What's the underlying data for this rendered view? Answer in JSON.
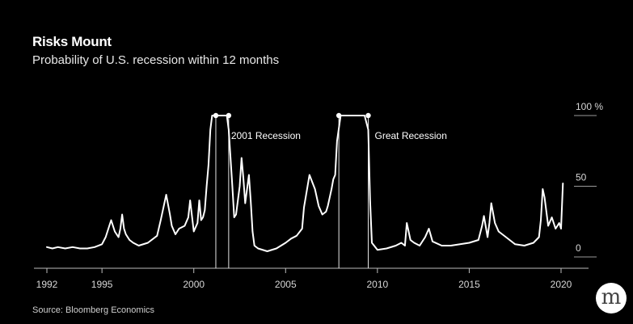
{
  "header": {
    "title": "Risks Mount",
    "subtitle": "Probability of U.S. recession within 12 months"
  },
  "footer": {
    "source": "Source: Bloomberg Economics"
  },
  "logo": {
    "letter": "m",
    "icon": "m-circle-logo"
  },
  "chart_data": {
    "type": "line",
    "title": "Risks Mount",
    "subtitle": "Probability of U.S. recession within 12 months",
    "xlabel": "",
    "ylabel": "",
    "xlim": [
      1992,
      2020.5
    ],
    "ylim": [
      0,
      100
    ],
    "x_ticks": [
      {
        "value": 1992,
        "label": "1992"
      },
      {
        "value": 1995,
        "label": "1995"
      },
      {
        "value": 2000,
        "label": "2000"
      },
      {
        "value": 2005,
        "label": "2005"
      },
      {
        "value": 2010,
        "label": "2010"
      },
      {
        "value": 2015,
        "label": "2015"
      },
      {
        "value": 2020,
        "label": "2020"
      }
    ],
    "y_ticks": [
      {
        "value": 0,
        "label": "0"
      },
      {
        "value": 50,
        "label": "50"
      },
      {
        "value": 100,
        "label": "100 %"
      }
    ],
    "grid": false,
    "colors": {
      "background": "#000000",
      "line": "#ffffff",
      "text": "#ffffff"
    },
    "recessions": [
      {
        "label": "2001 Recession",
        "start": 2001.2,
        "end": 2001.9
      },
      {
        "label": "Great Recession",
        "start": 2007.9,
        "end": 2009.5
      }
    ],
    "series": [
      {
        "x": [
          1992.0,
          1992.3,
          1992.6,
          1993.0,
          1993.4,
          1993.8,
          1994.2,
          1994.6,
          1995.0,
          1995.2,
          1995.4,
          1995.5,
          1995.7,
          1995.9,
          1996.0,
          1996.1,
          1996.2,
          1996.3,
          1996.5,
          1996.7,
          1997.0,
          1997.5,
          1998.0,
          1998.2,
          1998.5,
          1998.7,
          1998.8,
          1999.0,
          1999.2,
          1999.5,
          1999.7,
          1999.8,
          2000.0,
          2000.2,
          2000.3,
          2000.4,
          2000.5,
          2000.6,
          2000.7,
          2000.8,
          2000.9,
          2001.0,
          2001.2,
          2001.5,
          2001.8,
          2001.9,
          2002.1,
          2002.2,
          2002.3,
          2002.5,
          2002.6,
          2002.7,
          2002.8,
          2002.9,
          2003.0,
          2003.1,
          2003.2,
          2003.3,
          2003.5,
          2004.0,
          2004.5,
          2005.0,
          2005.3,
          2005.6,
          2005.9,
          2006.0,
          2006.3,
          2006.6,
          2006.8,
          2007.0,
          2007.2,
          2007.3,
          2007.5,
          2007.6,
          2007.7,
          2007.8,
          2008.0,
          2008.1,
          2008.5,
          2009.0,
          2009.3,
          2009.5,
          2009.6,
          2009.7,
          2010.0,
          2010.5,
          2011.0,
          2011.3,
          2011.5,
          2011.6,
          2011.8,
          2012.0,
          2012.3,
          2012.6,
          2012.8,
          2013.0,
          2013.5,
          2014.0,
          2014.5,
          2015.0,
          2015.5,
          2015.7,
          2015.8,
          2016.0,
          2016.1,
          2016.2,
          2016.4,
          2016.6,
          2017.0,
          2017.5,
          2018.0,
          2018.5,
          2018.8,
          2018.9,
          2019.0,
          2019.1,
          2019.3,
          2019.5,
          2019.7,
          2019.8,
          2019.9,
          2020.0,
          2020.1
        ],
        "y": [
          7,
          6,
          7,
          6,
          7,
          6,
          6,
          7,
          9,
          14,
          22,
          26,
          18,
          14,
          20,
          30,
          20,
          16,
          12,
          10,
          8,
          10,
          15,
          26,
          44,
          30,
          22,
          16,
          20,
          22,
          28,
          40,
          18,
          24,
          40,
          26,
          28,
          33,
          50,
          65,
          90,
          100,
          100,
          100,
          100,
          90,
          50,
          28,
          30,
          50,
          70,
          56,
          38,
          48,
          58,
          40,
          18,
          8,
          6,
          4,
          6,
          10,
          13,
          15,
          20,
          35,
          58,
          48,
          36,
          30,
          32,
          36,
          48,
          55,
          58,
          82,
          100,
          100,
          100,
          100,
          100,
          90,
          40,
          10,
          5,
          6,
          8,
          10,
          8,
          24,
          12,
          10,
          8,
          14,
          20,
          11,
          8,
          8,
          9,
          10,
          12,
          22,
          29,
          14,
          24,
          38,
          24,
          18,
          14,
          9,
          8,
          10,
          14,
          26,
          48,
          42,
          22,
          28,
          20,
          22,
          24,
          20,
          52
        ]
      }
    ]
  }
}
